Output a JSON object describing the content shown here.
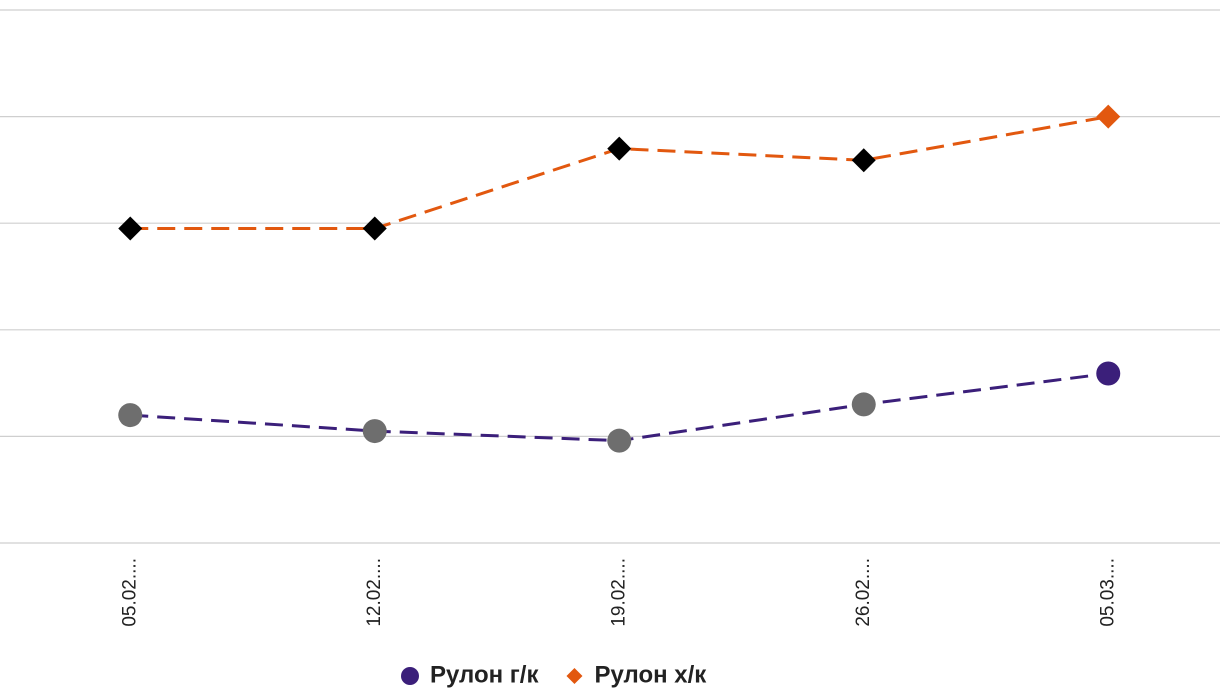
{
  "chart_data": {
    "type": "line",
    "categories": [
      "05.02....",
      "12.02....",
      "19.02....",
      "26.02....",
      "05.03...."
    ],
    "series": [
      {
        "name": "Рулон г/к",
        "color": "#3b1f7a",
        "marker": "circle",
        "marker_color": "#6e6e6e",
        "values": [
          1.2,
          1.05,
          0.96,
          1.3,
          1.59
        ]
      },
      {
        "name": "Рулон х/к",
        "color": "#e2580f",
        "marker": "diamond",
        "marker_color": "#000000",
        "values": [
          2.95,
          2.95,
          3.7,
          3.59,
          4.0
        ]
      }
    ],
    "ylim": [
      0,
      5
    ],
    "yticks": [
      0,
      1,
      2,
      3,
      4,
      5
    ],
    "grid": true,
    "legend": "bottom"
  }
}
